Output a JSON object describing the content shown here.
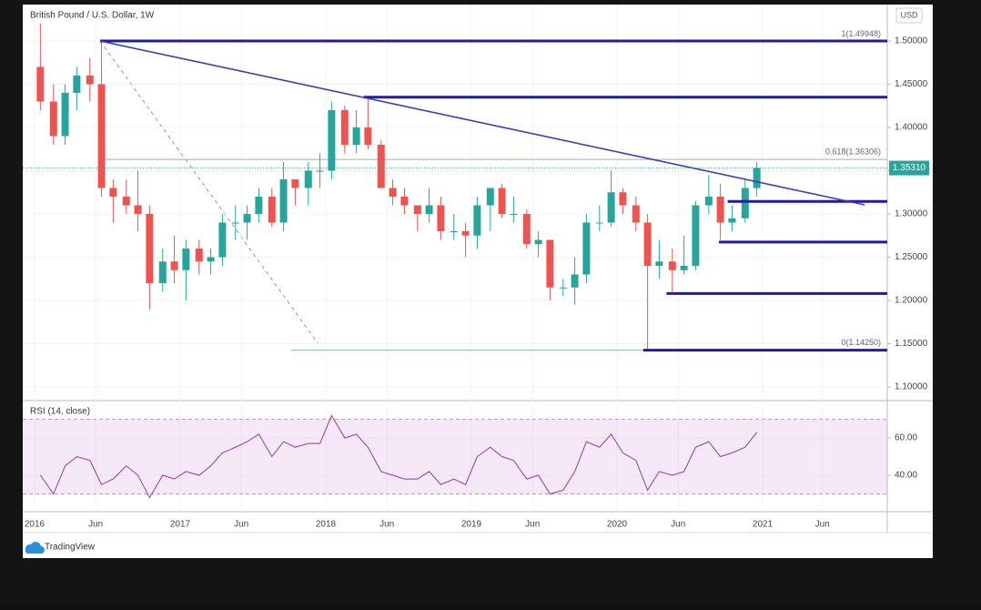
{
  "chart_data": {
    "type": "candlestick",
    "title": "British Pound / U.S. Dollar, 1W",
    "currency": "USD",
    "x": [
      2016.04,
      2016.13,
      2016.21,
      2016.29,
      2016.38,
      2016.46,
      2016.54,
      2016.63,
      2016.71,
      2016.79,
      2016.88,
      2016.96,
      2017.04,
      2017.13,
      2017.21,
      2017.29,
      2017.38,
      2017.46,
      2017.54,
      2017.63,
      2017.71,
      2017.79,
      2017.88,
      2017.96,
      2018.04,
      2018.13,
      2018.21,
      2018.29,
      2018.38,
      2018.46,
      2018.54,
      2018.63,
      2018.71,
      2018.79,
      2018.88,
      2018.96,
      2019.04,
      2019.13,
      2019.21,
      2019.29,
      2019.38,
      2019.46,
      2019.54,
      2019.63,
      2019.71,
      2019.79,
      2019.88,
      2019.96,
      2020.04,
      2020.13,
      2020.21,
      2020.29,
      2020.38,
      2020.46,
      2020.54,
      2020.63,
      2020.71,
      2020.79,
      2020.88,
      2020.96
    ],
    "open": [
      1.47,
      1.43,
      1.39,
      1.44,
      1.46,
      1.45,
      1.33,
      1.32,
      1.31,
      1.3,
      1.22,
      1.245,
      1.235,
      1.26,
      1.245,
      1.25,
      1.29,
      1.29,
      1.3,
      1.32,
      1.29,
      1.34,
      1.33,
      1.35,
      1.35,
      1.42,
      1.38,
      1.4,
      1.38,
      1.33,
      1.32,
      1.31,
      1.3,
      1.31,
      1.28,
      1.28,
      1.275,
      1.31,
      1.33,
      1.3,
      1.3,
      1.265,
      1.27,
      1.215,
      1.215,
      1.23,
      1.29,
      1.29,
      1.325,
      1.31,
      1.29,
      1.24,
      1.245,
      1.235,
      1.24,
      1.31,
      1.32,
      1.29,
      1.295,
      1.33
    ],
    "high": [
      1.52,
      1.45,
      1.45,
      1.47,
      1.48,
      1.5,
      1.34,
      1.34,
      1.35,
      1.31,
      1.26,
      1.275,
      1.27,
      1.27,
      1.26,
      1.3,
      1.31,
      1.31,
      1.33,
      1.33,
      1.36,
      1.34,
      1.36,
      1.37,
      1.43,
      1.425,
      1.42,
      1.435,
      1.385,
      1.34,
      1.33,
      1.31,
      1.33,
      1.32,
      1.3,
      1.29,
      1.32,
      1.33,
      1.335,
      1.32,
      1.305,
      1.28,
      1.27,
      1.225,
      1.25,
      1.3,
      1.31,
      1.35,
      1.33,
      1.32,
      1.3,
      1.27,
      1.26,
      1.275,
      1.315,
      1.345,
      1.335,
      1.31,
      1.34,
      1.36
    ],
    "low": [
      1.42,
      1.38,
      1.38,
      1.42,
      1.43,
      1.32,
      1.29,
      1.3,
      1.28,
      1.19,
      1.21,
      1.22,
      1.2,
      1.23,
      1.23,
      1.24,
      1.27,
      1.27,
      1.29,
      1.285,
      1.28,
      1.31,
      1.31,
      1.33,
      1.34,
      1.37,
      1.37,
      1.375,
      1.33,
      1.31,
      1.3,
      1.28,
      1.29,
      1.27,
      1.27,
      1.25,
      1.26,
      1.28,
      1.295,
      1.29,
      1.26,
      1.25,
      1.2,
      1.205,
      1.195,
      1.22,
      1.28,
      1.285,
      1.3,
      1.28,
      1.1425,
      1.225,
      1.21,
      1.23,
      1.235,
      1.3,
      1.27,
      1.28,
      1.29,
      1.32
    ],
    "close": [
      1.43,
      1.39,
      1.44,
      1.46,
      1.45,
      1.33,
      1.32,
      1.31,
      1.3,
      1.22,
      1.245,
      1.235,
      1.26,
      1.245,
      1.25,
      1.29,
      1.29,
      1.3,
      1.32,
      1.29,
      1.34,
      1.33,
      1.35,
      1.35,
      1.42,
      1.38,
      1.4,
      1.38,
      1.33,
      1.32,
      1.31,
      1.3,
      1.31,
      1.28,
      1.28,
      1.275,
      1.31,
      1.33,
      1.3,
      1.3,
      1.265,
      1.27,
      1.215,
      1.215,
      1.23,
      1.29,
      1.29,
      1.325,
      1.31,
      1.29,
      1.24,
      1.245,
      1.235,
      1.24,
      1.31,
      1.32,
      1.29,
      1.295,
      1.33,
      1.3531
    ],
    "up_color": "#26a69a",
    "down_color": "#ef5350",
    "xlim": [
      2015.919,
      2021.856
    ],
    "xticks": [
      {
        "value": 2016,
        "label": "2016"
      },
      {
        "value": 2016.42,
        "label": "Jun"
      },
      {
        "value": 2017,
        "label": "2017"
      },
      {
        "value": 2017.42,
        "label": "Jun"
      },
      {
        "value": 2018,
        "label": "2018"
      },
      {
        "value": 2018.42,
        "label": "Jun"
      },
      {
        "value": 2019,
        "label": "2019"
      },
      {
        "value": 2019.42,
        "label": "Jun"
      },
      {
        "value": 2020,
        "label": "2020"
      },
      {
        "value": 2020.42,
        "label": "Jun"
      },
      {
        "value": 2021,
        "label": "2021"
      },
      {
        "value": 2021.41,
        "label": "Jun"
      }
    ],
    "ylim": [
      1.0842,
      1.5421
    ],
    "yticks": [
      {
        "value": 1.1,
        "label": "1.10000"
      },
      {
        "value": 1.15,
        "label": "1.15000"
      },
      {
        "value": 1.2,
        "label": "1.20000"
      },
      {
        "value": 1.25,
        "label": "1.25000"
      },
      {
        "value": 1.3,
        "label": "1.30000"
      },
      {
        "value": 1.35,
        "label": "1.35000"
      },
      {
        "value": 1.4,
        "label": "1.40000"
      },
      {
        "value": 1.45,
        "label": "1.45000"
      },
      {
        "value": 1.5,
        "label": "1.50000"
      }
    ],
    "grid": true,
    "last_price": {
      "value": 1.3531,
      "label": "1.35310"
    },
    "levels": [
      {
        "from": 2016.45,
        "value": 1.5
      },
      {
        "from": 2018.26,
        "value": 1.435
      },
      {
        "from": 2020.76,
        "value": 1.3145
      },
      {
        "from": 2020.7,
        "value": 1.2675
      },
      {
        "from": 2020.34,
        "value": 1.208
      },
      {
        "from": 2020.18,
        "value": 1.1425
      }
    ],
    "level_color": "#1c1ca8",
    "trendline": {
      "x": [
        2016.45,
        2021.7
      ],
      "y": [
        1.5,
        1.3105
      ],
      "color": "#3c3cbc"
    },
    "fib": [
      {
        "value": 1.49948,
        "label": "1(1.49948)"
      },
      {
        "value": 1.36306,
        "label": "0.618(1.36306)"
      },
      {
        "value": 1.1425,
        "label": "0(1.14250)"
      }
    ],
    "fib_color": "#8cbf94",
    "rsi": {
      "title": "RSI (14, close)",
      "color": "#8e3aa0",
      "values": [
        40,
        30,
        45,
        50,
        48,
        35,
        38,
        45,
        40,
        28,
        40,
        38,
        42,
        40,
        45,
        52,
        55,
        58,
        62,
        50,
        58,
        55,
        57,
        57,
        72,
        60,
        62,
        55,
        42,
        40,
        38,
        38,
        42,
        35,
        38,
        35,
        50,
        55,
        50,
        48,
        38,
        40,
        30,
        32,
        42,
        58,
        55,
        62,
        52,
        48,
        32,
        42,
        40,
        42,
        55,
        58,
        50,
        52,
        55,
        63
      ],
      "ylim": [
        20.5,
        80
      ],
      "yticks": [
        {
          "value": 40,
          "label": "40.00"
        },
        {
          "value": 60,
          "label": "60.00"
        }
      ],
      "band": [
        30,
        70
      ]
    },
    "brand": "TradingView"
  }
}
